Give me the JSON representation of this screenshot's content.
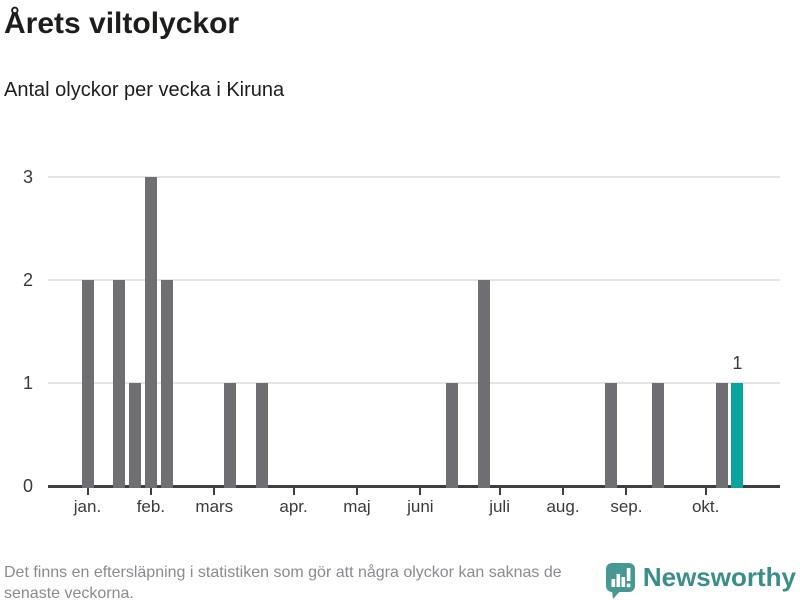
{
  "title": "Årets viltolyckor",
  "subtitle": "Antal olyckor per vecka i Kiruna",
  "note": {
    "lines": {
      "0": "Det finns en eftersläpning i statistiken som gör att några olyckor kan saknas de",
      "1": "senaste veckorna."
    }
  },
  "branding": {
    "name": "Newsworthy",
    "icon": "newsworthy-speech-bubble-bar-chart-icon",
    "icon_color": "#479792",
    "text_color": "#3a8e89"
  },
  "colors": {
    "bar": "#6e6e73",
    "bar_highlight": "#0aa49e",
    "gridline": "#e4e4e4",
    "axis": "#3e3e41",
    "axis_text": "#3a3a3a",
    "title_text": "#1d1d1b",
    "note_text": "#8a8a91"
  },
  "chart_data": {
    "type": "bar",
    "title": "Årets viltolyckor",
    "subtitle": "Antal olyckor per vecka i Kiruna",
    "xlabel": "",
    "ylabel": "",
    "x_unit": "week-of-year",
    "ylim": [
      0,
      3
    ],
    "y_ticks": [
      0,
      1,
      2,
      3
    ],
    "grid": "horizontal",
    "legend": "none",
    "x_axis_months": [
      {
        "label": "jan.",
        "week": 1
      },
      {
        "label": "feb.",
        "week": 5
      },
      {
        "label": "mars",
        "week": 9
      },
      {
        "label": "apr.",
        "week": 14
      },
      {
        "label": "maj",
        "week": 18
      },
      {
        "label": "juni",
        "week": 22
      },
      {
        "label": "juli",
        "week": 27
      },
      {
        "label": "aug.",
        "week": 31
      },
      {
        "label": "sep.",
        "week": 35
      },
      {
        "label": "okt.",
        "week": 40
      }
    ],
    "bars": [
      {
        "week": 1,
        "value": 2
      },
      {
        "week": 3,
        "value": 2
      },
      {
        "week": 4,
        "value": 1
      },
      {
        "week": 5,
        "value": 3
      },
      {
        "week": 6,
        "value": 2
      },
      {
        "week": 10,
        "value": 1
      },
      {
        "week": 12,
        "value": 1
      },
      {
        "week": 24,
        "value": 1
      },
      {
        "week": 26,
        "value": 2
      },
      {
        "week": 34,
        "value": 1
      },
      {
        "week": 37,
        "value": 1
      },
      {
        "week": 41,
        "value": 1
      },
      {
        "week": 42,
        "value": 1,
        "highlighted": true,
        "data_label": "1"
      }
    ]
  }
}
